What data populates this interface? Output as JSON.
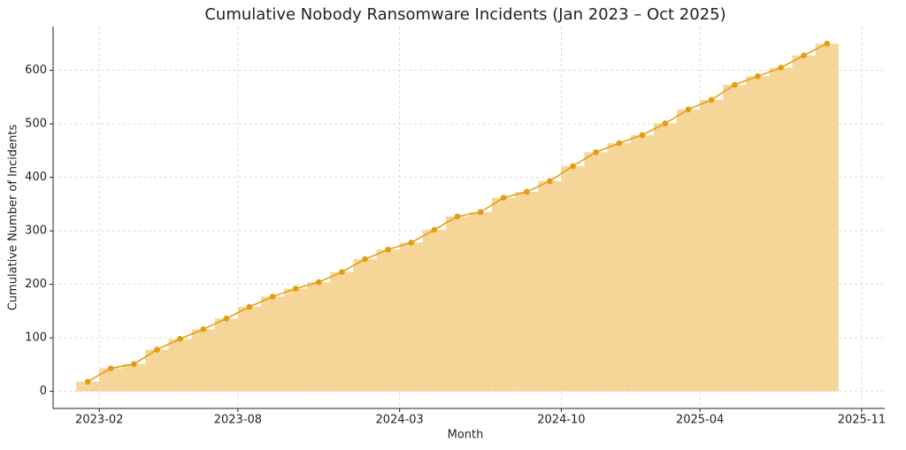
{
  "chart_data": {
    "type": "line",
    "title": "Cumulative Nobody Ransomware Incidents (Jan 2023 – Oct 2025)",
    "x_label": "Month",
    "y_label": "Cumulative Number of Incidents",
    "x": [
      "2023-01",
      "2023-02",
      "2023-03",
      "2023-04",
      "2023-05",
      "2023-06",
      "2023-07",
      "2023-08",
      "2023-09",
      "2023-10",
      "2023-11",
      "2023-12",
      "2024-01",
      "2024-02",
      "2024-03",
      "2024-04",
      "2024-05",
      "2024-06",
      "2024-07",
      "2024-08",
      "2024-09",
      "2024-10",
      "2024-11",
      "2024-12",
      "2025-01",
      "2025-02",
      "2025-03",
      "2025-04",
      "2025-05",
      "2025-06",
      "2025-07",
      "2025-08",
      "2025-09"
    ],
    "series": [
      {
        "color": "#e39c0e",
        "fill_color": "#f5d698",
        "values": [
          18,
          43,
          51,
          78,
          98,
          116,
          136,
          158,
          177,
          192,
          204,
          223,
          247,
          265,
          278,
          302,
          327,
          335,
          362,
          373,
          393,
          421,
          447,
          464,
          479,
          501,
          527,
          545,
          573,
          589,
          605,
          628,
          650
        ]
      }
    ],
    "xlim": [
      "2022-12",
      "2025-12"
    ],
    "xticks": [
      "2023-02",
      "2023-08",
      "2024-03",
      "2024-10",
      "2025-04",
      "2025-11"
    ],
    "ylim": [
      -32,
      682
    ],
    "yticks": [
      0,
      100,
      200,
      300,
      400,
      500,
      600
    ],
    "grid": true
  }
}
